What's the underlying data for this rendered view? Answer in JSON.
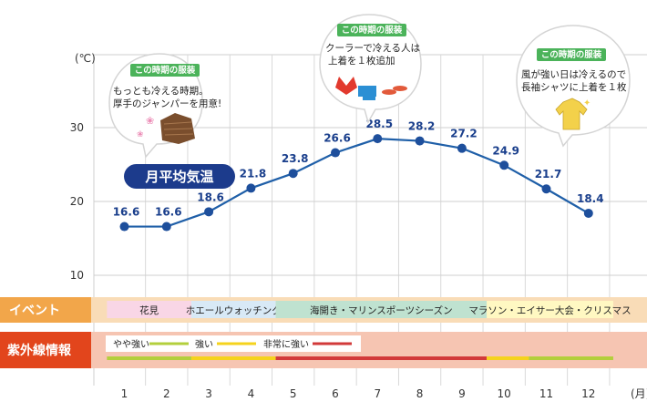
{
  "chart_data": {
    "type": "line",
    "title": "月平均気温",
    "x_unit": "(月)",
    "y_unit": "(℃)",
    "categories": [
      1,
      2,
      3,
      4,
      5,
      6,
      7,
      8,
      9,
      10,
      11,
      12
    ],
    "values": [
      16.6,
      16.6,
      18.6,
      21.8,
      23.8,
      26.6,
      28.5,
      28.2,
      27.2,
      24.9,
      21.7,
      18.4
    ],
    "y_ticks": [
      10,
      20,
      30
    ],
    "ylim": [
      10,
      30
    ],
    "grid": true,
    "line_color": "#1f5fa8",
    "point_color": "#1e4f9c"
  },
  "bubbles": [
    {
      "tag": "この時期の服装",
      "lines": [
        "もっとも冷える時期。",
        "厚手のジャンパーを用意!"
      ],
      "icon": "jacket-icon"
    },
    {
      "tag": "この時期の服装",
      "lines": [
        "クーラーで冷える人は",
        "上着を１枚追加"
      ],
      "icon": "swimwear-icon"
    },
    {
      "tag": "この時期の服装",
      "lines": [
        "風が強い日は冷えるので",
        "長袖シャツに上着を１枚"
      ],
      "icon": "long-sleeve-shirt-icon"
    }
  ],
  "event_row": {
    "label": "イベント",
    "items": [
      {
        "text": "花見",
        "color": "#f9d6e6",
        "start": 1,
        "end": 3
      },
      {
        "text": "ホエールウォッチング",
        "color": "#d8e9f6",
        "start": 3,
        "end": 5
      },
      {
        "text": "海開き・マリンスポーツシーズン",
        "color": "#bfe2d0",
        "start": 5,
        "end": 10
      },
      {
        "text": "マラソン・エイサー大会・クリスマス",
        "color": "#fff8c2",
        "start": 10,
        "end": 13
      }
    ]
  },
  "uv_row": {
    "label": "紫外線情報",
    "legend": [
      {
        "text": "やや強い",
        "color": "#b3cf3c"
      },
      {
        "text": "強い",
        "color": "#f5d31d"
      },
      {
        "text": "非常に強い",
        "color": "#d23a3a"
      }
    ],
    "segments": [
      {
        "start": 1,
        "end": 3,
        "color": "#b3cf3c"
      },
      {
        "start": 3,
        "end": 5,
        "color": "#f5d31d"
      },
      {
        "start": 5,
        "end": 10,
        "color": "#d23a3a"
      },
      {
        "start": 10,
        "end": 11,
        "color": "#f5d31d"
      },
      {
        "start": 11,
        "end": 13,
        "color": "#b3cf3c"
      }
    ]
  },
  "colors": {
    "event_band": "#f9dcb7",
    "event_head": "#f2a64a",
    "uv_band": "#f6c5b2",
    "uv_head": "#e2451c",
    "title_badge": "#1c3b8c",
    "tag": "#4bb35a"
  }
}
